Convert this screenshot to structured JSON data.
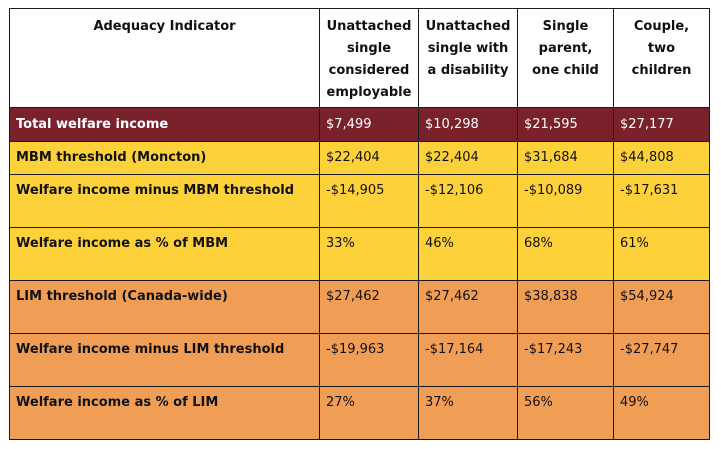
{
  "table": {
    "headers": [
      "Adequacy Indicator",
      "Unattached single considered employable",
      "Unattached single with a disability",
      "Single parent, one child",
      "Couple, two children"
    ],
    "rows": [
      {
        "label": "Total welfare income",
        "values": [
          "$7,499",
          "$10,298",
          "$21,595",
          "$27,177"
        ]
      },
      {
        "label": "MBM threshold  (Moncton)",
        "values": [
          "$22,404",
          "$22,404",
          "$31,684",
          "$44,808"
        ]
      },
      {
        "label": "Welfare income minus MBM threshold",
        "values": [
          "-$14,905",
          "-$12,106",
          "-$10,089",
          "-$17,631"
        ]
      },
      {
        "label": "Welfare income as % of MBM",
        "values": [
          "33%",
          "46%",
          "68%",
          "61%"
        ]
      },
      {
        "label": "LIM threshold  (Canada-wide)",
        "values": [
          "$27,462",
          "$27,462",
          "$38,838",
          "$54,924"
        ]
      },
      {
        "label": "Welfare income minus LIM threshold",
        "values": [
          "-$19,963",
          "-$17,164",
          "-$17,243",
          "-$27,747"
        ]
      },
      {
        "label": "Welfare income as % of LIM",
        "values": [
          "27%",
          "37%",
          "56%",
          "49%"
        ]
      }
    ]
  },
  "colors": {
    "maroon": "#7a222c",
    "yellow": "#fdd13a",
    "orange": "#f09e56"
  }
}
